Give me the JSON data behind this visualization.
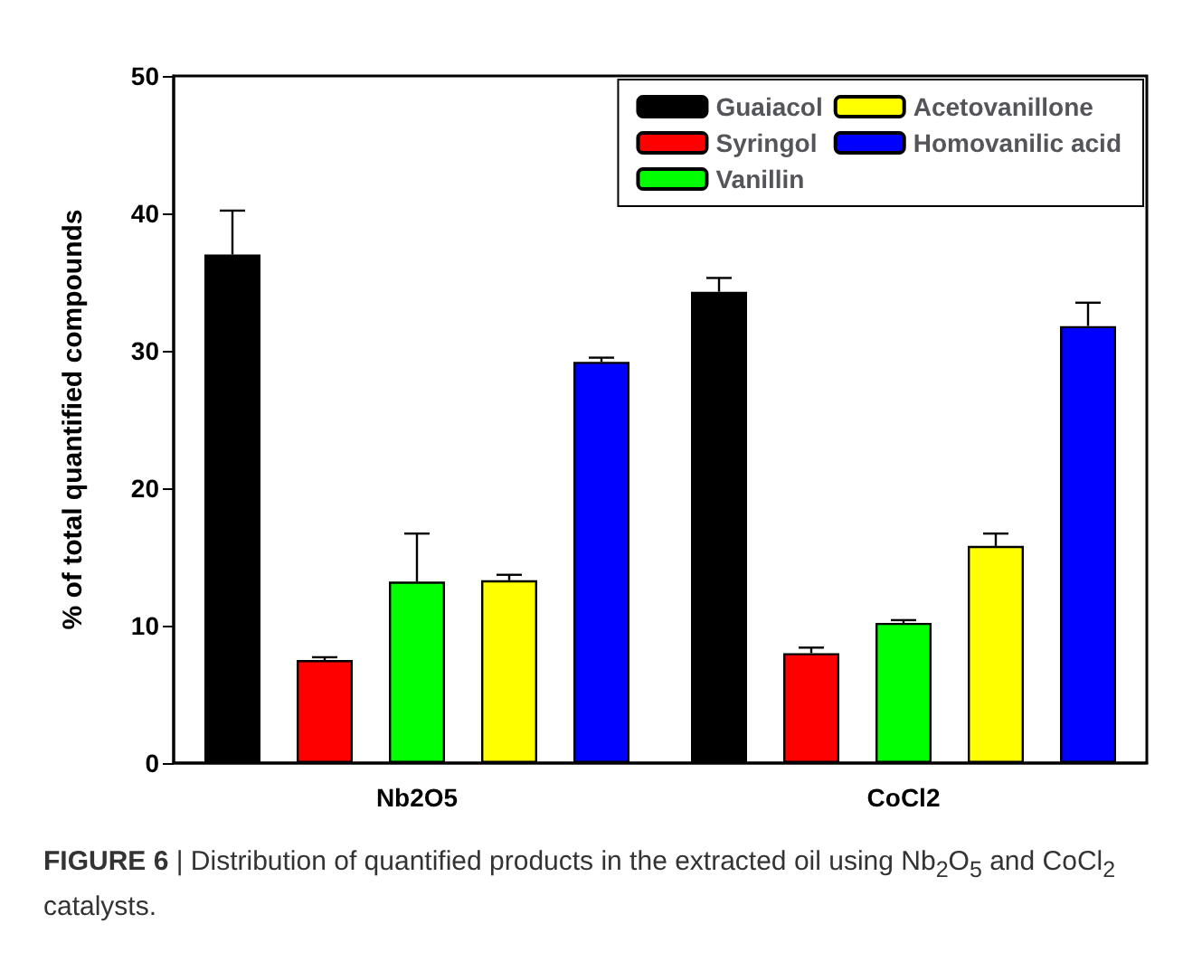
{
  "chart_data": {
    "type": "bar",
    "ylabel": "% of total quantified compounds",
    "categories": [
      "Nb2O5",
      "CoCl2"
    ],
    "series": [
      {
        "name": "Guaiacol",
        "color": "#000000",
        "values": [
          37.0,
          34.3
        ],
        "errors": [
          [
            37.0,
            40.2
          ],
          [
            34.3,
            35.3
          ]
        ]
      },
      {
        "name": "Syringol",
        "color": "#ff0000",
        "values": [
          7.5,
          8.0
        ],
        "errors": [
          [
            7.5,
            7.7
          ],
          [
            8.0,
            8.4
          ]
        ]
      },
      {
        "name": "Vanillin",
        "color": "#00ff00",
        "values": [
          13.2,
          10.2
        ],
        "errors": [
          [
            13.2,
            16.7
          ],
          [
            10.2,
            10.4
          ]
        ]
      },
      {
        "name": "Acetovanillone",
        "color": "#ffff00",
        "values": [
          13.3,
          15.8
        ],
        "errors": [
          [
            13.3,
            13.7
          ],
          [
            15.8,
            16.7
          ]
        ]
      },
      {
        "name": "Homovanilic acid",
        "color": "#0000ff",
        "values": [
          29.2,
          31.8
        ],
        "errors": [
          [
            29.2,
            29.5
          ],
          [
            31.8,
            33.5
          ]
        ]
      }
    ],
    "ylim": [
      0,
      50
    ],
    "yticks": [
      0,
      10,
      20,
      30,
      40,
      50
    ],
    "grid": false,
    "legend": "top right",
    "annotations": [
      "FIGURE 6 | Distribution of quantified products in the extracted oil using Nb$_{2}$O$_{5}$ and CoCl$_{2}$ catalysts."
    ]
  }
}
